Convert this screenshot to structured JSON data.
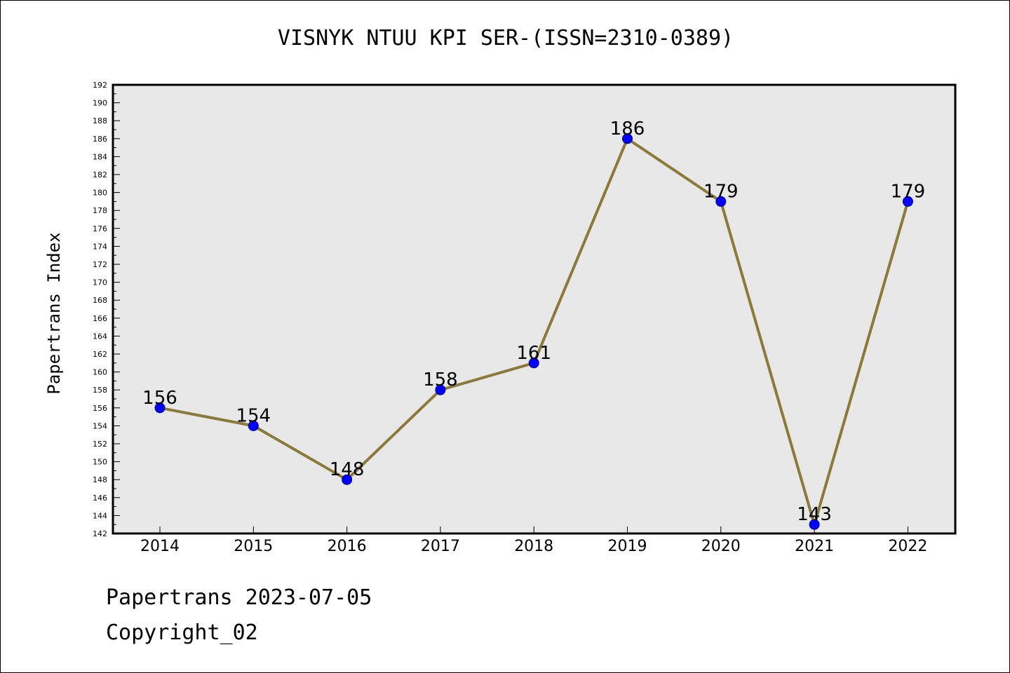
{
  "title": "VISNYK NTUU KPI SER-(ISSN=2310-0389)",
  "footer": {
    "line1": "Papertrans 2023-07-05",
    "line2": "Copyright_02"
  },
  "colors": {
    "plot_background": "#e8e8e8",
    "line": "#8b7a3a",
    "marker": "#0000ff",
    "marker_edge": "#000080"
  },
  "chart_data": {
    "type": "line",
    "title": "VISNYK NTUU KPI SER-(ISSN=2310-0389)",
    "xlabel": "",
    "ylabel": "Papertrans Index",
    "x": [
      "2014",
      "2015",
      "2016",
      "2017",
      "2018",
      "2019",
      "2020",
      "2021",
      "2022"
    ],
    "series": [
      {
        "values": [
          156,
          154,
          148,
          158,
          161,
          186,
          179,
          143,
          179
        ]
      }
    ],
    "ylim": [
      142,
      192
    ],
    "ytick_step": 2,
    "grid": false,
    "legend": "none"
  }
}
